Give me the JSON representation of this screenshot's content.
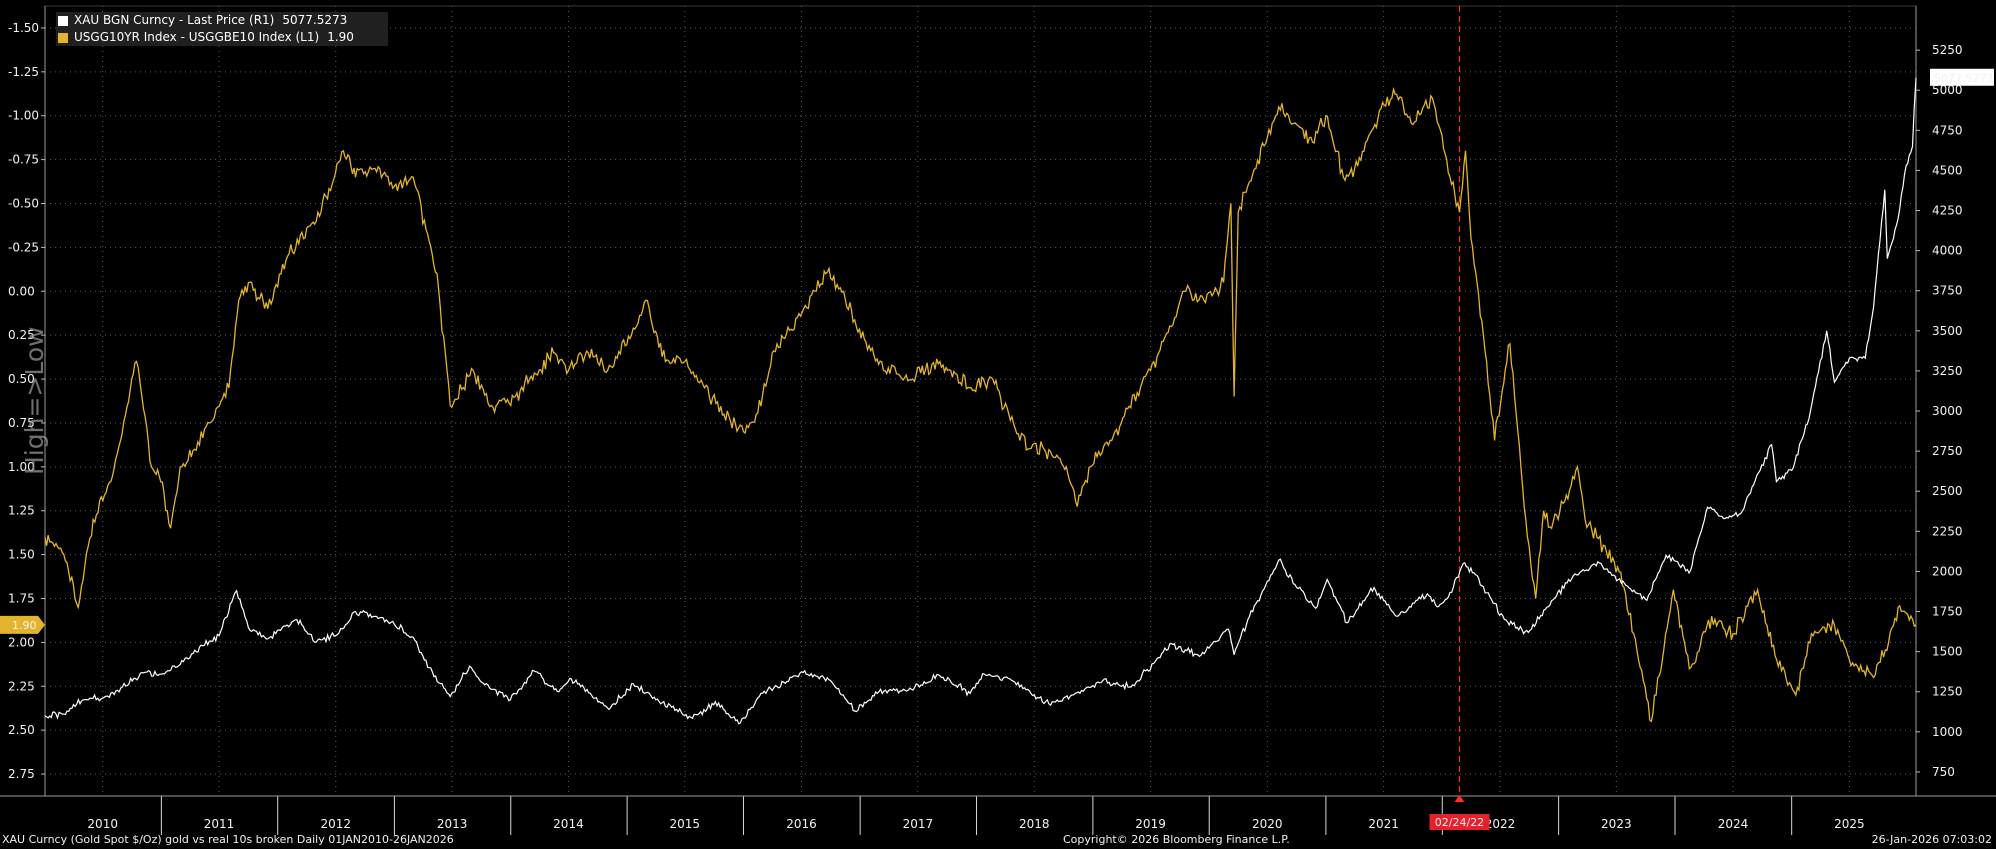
{
  "legend": {
    "gold_label": "XAU BGN Curncy - Last Price (R1)",
    "gold_value": "5077.5273",
    "spread_label": "USGG10YR Index - USGGBE10 Index (L1)",
    "spread_value": "1.90"
  },
  "colors": {
    "gold_series": "#ffffff",
    "spread_series": "#e3b42d",
    "event_marker": "#ff2b2b",
    "background": "#000000"
  },
  "watermark": "High=>Low",
  "footer": {
    "left": "XAU Curncy (Gold Spot  $/Oz) gold vs real 10s broken Daily 01JAN2010-26JAN2026",
    "center": "Copyright© 2026 Bloomberg Finance L.P.",
    "right": "26-Jan-2026 07:03:02"
  },
  "chart_data": {
    "type": "line",
    "x_label": "",
    "x_range": [
      "2010-01-01",
      "2026-01-26"
    ],
    "x_ticks": [
      "2010",
      "2011",
      "2012",
      "2013",
      "2014",
      "2015",
      "2016",
      "2017",
      "2018",
      "2019",
      "2020",
      "2021",
      "2022",
      "2023",
      "2024",
      "2025"
    ],
    "left_axis": {
      "label": "",
      "inverted": true,
      "range": [
        2.875,
        -1.625
      ],
      "ticks": [
        "-1.50",
        "-1.25",
        "-1.00",
        "-0.75",
        "-0.50",
        "-0.25",
        "0.00",
        "0.25",
        "0.50",
        "0.75",
        "1.00",
        "1.25",
        "1.50",
        "1.75",
        "2.00",
        "2.25",
        "2.50",
        "2.75"
      ]
    },
    "right_axis": {
      "label": "",
      "range": [
        600,
        5525
      ],
      "ticks": [
        "750",
        "1000",
        "1250",
        "1500",
        "1750",
        "2000",
        "2250",
        "2500",
        "2750",
        "3000",
        "3250",
        "3500",
        "3750",
        "4000",
        "4250",
        "4500",
        "4750",
        "5000",
        "5250"
      ]
    },
    "annotation": {
      "date": "2022-02-24",
      "label": "02/24/22"
    },
    "last_values": {
      "gold": "5077.5273",
      "spread": "1.90"
    },
    "series": [
      {
        "name": "XAU BGN Curncy - Last Price (R1)",
        "axis": "right",
        "points": [
          [
            "2010-01-01",
            1100
          ],
          [
            "2010-03-01",
            1110
          ],
          [
            "2010-05-01",
            1200
          ],
          [
            "2010-07-01",
            1210
          ],
          [
            "2010-09-01",
            1280
          ],
          [
            "2010-11-01",
            1370
          ],
          [
            "2011-01-01",
            1360
          ],
          [
            "2011-03-01",
            1420
          ],
          [
            "2011-05-01",
            1530
          ],
          [
            "2011-07-01",
            1600
          ],
          [
            "2011-08-25",
            1880
          ],
          [
            "2011-10-01",
            1650
          ],
          [
            "2011-12-01",
            1580
          ],
          [
            "2012-01-15",
            1650
          ],
          [
            "2012-03-01",
            1700
          ],
          [
            "2012-05-01",
            1560
          ],
          [
            "2012-07-01",
            1600
          ],
          [
            "2012-09-01",
            1750
          ],
          [
            "2012-11-01",
            1720
          ],
          [
            "2013-01-01",
            1670
          ],
          [
            "2013-03-01",
            1590
          ],
          [
            "2013-04-20",
            1400
          ],
          [
            "2013-06-25",
            1220
          ],
          [
            "2013-08-25",
            1410
          ],
          [
            "2013-10-01",
            1310
          ],
          [
            "2013-12-31",
            1200
          ],
          [
            "2014-03-15",
            1380
          ],
          [
            "2014-06-01",
            1250
          ],
          [
            "2014-07-10",
            1330
          ],
          [
            "2014-11-05",
            1140
          ],
          [
            "2015-01-20",
            1300
          ],
          [
            "2015-04-01",
            1200
          ],
          [
            "2015-07-20",
            1090
          ],
          [
            "2015-10-15",
            1180
          ],
          [
            "2015-12-17",
            1050
          ],
          [
            "2016-03-01",
            1240
          ],
          [
            "2016-07-06",
            1370
          ],
          [
            "2016-09-30",
            1320
          ],
          [
            "2016-12-15",
            1130
          ],
          [
            "2017-03-01",
            1250
          ],
          [
            "2017-06-01",
            1260
          ],
          [
            "2017-09-08",
            1350
          ],
          [
            "2017-12-12",
            1240
          ],
          [
            "2018-01-25",
            1360
          ],
          [
            "2018-05-01",
            1310
          ],
          [
            "2018-08-16",
            1175
          ],
          [
            "2018-11-01",
            1230
          ],
          [
            "2019-02-01",
            1320
          ],
          [
            "2019-05-01",
            1280
          ],
          [
            "2019-09-04",
            1550
          ],
          [
            "2019-12-01",
            1470
          ],
          [
            "2020-03-01",
            1640
          ],
          [
            "2020-03-19",
            1480
          ],
          [
            "2020-05-01",
            1700
          ],
          [
            "2020-08-06",
            2070
          ],
          [
            "2020-10-01",
            1900
          ],
          [
            "2020-11-30",
            1770
          ],
          [
            "2021-01-05",
            1950
          ],
          [
            "2021-03-08",
            1680
          ],
          [
            "2021-06-01",
            1900
          ],
          [
            "2021-08-10",
            1720
          ],
          [
            "2021-11-15",
            1860
          ],
          [
            "2021-12-15",
            1780
          ],
          [
            "2022-01-20",
            1840
          ],
          [
            "2022-03-08",
            2050
          ],
          [
            "2022-04-15",
            1980
          ],
          [
            "2022-07-15",
            1700
          ],
          [
            "2022-09-28",
            1620
          ],
          [
            "2022-11-30",
            1780
          ],
          [
            "2023-02-01",
            1950
          ],
          [
            "2023-05-04",
            2060
          ],
          [
            "2023-08-15",
            1890
          ],
          [
            "2023-10-05",
            1820
          ],
          [
            "2023-12-04",
            2100
          ],
          [
            "2024-02-14",
            1990
          ],
          [
            "2024-04-12",
            2400
          ],
          [
            "2024-06-01",
            2330
          ],
          [
            "2024-07-25",
            2360
          ],
          [
            "2024-10-30",
            2790
          ],
          [
            "2024-11-14",
            2560
          ],
          [
            "2025-01-01",
            2630
          ],
          [
            "2025-02-24",
            2950
          ],
          [
            "2025-04-21",
            3500
          ],
          [
            "2025-05-15",
            3180
          ],
          [
            "2025-07-01",
            3330
          ],
          [
            "2025-08-20",
            3330
          ],
          [
            "2025-09-15",
            3650
          ],
          [
            "2025-10-20",
            4380
          ],
          [
            "2025-10-28",
            3950
          ],
          [
            "2025-12-01",
            4200
          ],
          [
            "2025-12-26",
            4530
          ],
          [
            "2026-01-15",
            4650
          ],
          [
            "2026-01-26",
            5077.5273
          ]
        ]
      },
      {
        "name": "USGG10YR Index - USGGBE10 Index (L1)",
        "axis": "left",
        "points": [
          [
            "2010-01-01",
            1.4
          ],
          [
            "2010-03-01",
            1.5
          ],
          [
            "2010-04-15",
            1.8
          ],
          [
            "2010-06-01",
            1.3
          ],
          [
            "2010-08-01",
            1.05
          ],
          [
            "2010-10-15",
            0.4
          ],
          [
            "2010-11-01",
            0.6
          ],
          [
            "2010-12-01",
            1.0
          ],
          [
            "2010-12-25",
            1.05
          ],
          [
            "2011-01-30",
            1.35
          ],
          [
            "2011-03-01",
            1.0
          ],
          [
            "2011-04-15",
            0.9
          ],
          [
            "2011-06-01",
            0.75
          ],
          [
            "2011-08-01",
            0.55
          ],
          [
            "2011-09-01",
            0.05
          ],
          [
            "2011-10-01",
            -0.05
          ],
          [
            "2011-12-01",
            0.1
          ],
          [
            "2012-02-01",
            -0.2
          ],
          [
            "2012-05-01",
            -0.4
          ],
          [
            "2012-07-25",
            -0.8
          ],
          [
            "2012-09-01",
            -0.65
          ],
          [
            "2012-11-01",
            -0.7
          ],
          [
            "2013-01-01",
            -0.6
          ],
          [
            "2013-03-01",
            -0.65
          ],
          [
            "2013-05-15",
            -0.1
          ],
          [
            "2013-06-25",
            0.65
          ],
          [
            "2013-09-05",
            0.45
          ],
          [
            "2013-11-01",
            0.65
          ],
          [
            "2014-01-01",
            0.65
          ],
          [
            "2014-03-01",
            0.5
          ],
          [
            "2014-05-15",
            0.35
          ],
          [
            "2014-07-01",
            0.45
          ],
          [
            "2014-09-01",
            0.35
          ],
          [
            "2014-11-01",
            0.45
          ],
          [
            "2015-01-30",
            0.2
          ],
          [
            "2015-03-01",
            0.05
          ],
          [
            "2015-05-01",
            0.4
          ],
          [
            "2015-07-01",
            0.4
          ],
          [
            "2015-09-01",
            0.55
          ],
          [
            "2015-11-01",
            0.7
          ],
          [
            "2016-01-01",
            0.8
          ],
          [
            "2016-02-10",
            0.7
          ],
          [
            "2016-04-15",
            0.3
          ],
          [
            "2016-07-08",
            0.1
          ],
          [
            "2016-09-15",
            -0.1
          ],
          [
            "2016-11-10",
            0.0
          ],
          [
            "2016-12-20",
            0.2
          ],
          [
            "2017-03-15",
            0.45
          ],
          [
            "2017-06-15",
            0.5
          ],
          [
            "2017-09-08",
            0.4
          ],
          [
            "2017-12-15",
            0.55
          ],
          [
            "2018-02-21",
            0.5
          ],
          [
            "2018-05-17",
            0.85
          ],
          [
            "2018-08-01",
            0.9
          ],
          [
            "2018-10-10",
            1.0
          ],
          [
            "2018-11-08",
            1.2
          ],
          [
            "2018-12-25",
            1.0
          ],
          [
            "2019-03-01",
            0.85
          ],
          [
            "2019-05-30",
            0.55
          ],
          [
            "2019-07-01",
            0.45
          ],
          [
            "2019-09-04",
            0.2
          ],
          [
            "2019-10-15",
            0.0
          ],
          [
            "2019-12-15",
            0.05
          ],
          [
            "2020-02-15",
            -0.05
          ],
          [
            "2020-03-09",
            -0.5
          ],
          [
            "2020-03-19",
            0.6
          ],
          [
            "2020-04-01",
            -0.45
          ],
          [
            "2020-05-01",
            -0.6
          ],
          [
            "2020-08-06",
            -1.05
          ],
          [
            "2020-10-01",
            -0.95
          ],
          [
            "2020-11-20",
            -0.85
          ],
          [
            "2021-01-01",
            -1.0
          ],
          [
            "2021-02-25",
            -0.65
          ],
          [
            "2021-04-01",
            -0.7
          ],
          [
            "2021-05-20",
            -0.9
          ],
          [
            "2021-08-01",
            -1.15
          ],
          [
            "2021-10-01",
            -0.95
          ],
          [
            "2021-12-01",
            -1.1
          ],
          [
            "2022-01-15",
            -0.75
          ],
          [
            "2022-02-24",
            -0.45
          ],
          [
            "2022-03-15",
            -0.8
          ],
          [
            "2022-04-01",
            -0.3
          ],
          [
            "2022-05-10",
            0.25
          ],
          [
            "2022-06-14",
            0.85
          ],
          [
            "2022-08-01",
            0.3
          ],
          [
            "2022-09-20",
            1.3
          ],
          [
            "2022-10-21",
            1.75
          ],
          [
            "2022-11-15",
            1.25
          ],
          [
            "2022-12-10",
            1.35
          ],
          [
            "2023-01-20",
            1.2
          ],
          [
            "2023-03-01",
            1.0
          ],
          [
            "2023-03-25",
            1.3
          ],
          [
            "2023-05-01",
            1.4
          ],
          [
            "2023-07-15",
            1.6
          ],
          [
            "2023-10-19",
            2.45
          ],
          [
            "2023-12-27",
            1.7
          ],
          [
            "2024-02-15",
            2.15
          ],
          [
            "2024-04-25",
            1.85
          ],
          [
            "2024-07-01",
            1.95
          ],
          [
            "2024-09-16",
            1.7
          ],
          [
            "2024-11-15",
            2.1
          ],
          [
            "2025-01-14",
            2.3
          ],
          [
            "2025-03-04",
            1.95
          ],
          [
            "2025-05-15",
            1.9
          ],
          [
            "2025-07-01",
            2.1
          ],
          [
            "2025-09-15",
            2.2
          ],
          [
            "2025-11-01",
            2.0
          ],
          [
            "2025-12-01",
            1.8
          ],
          [
            "2026-01-10",
            1.85
          ],
          [
            "2026-01-26",
            1.9
          ]
        ]
      }
    ]
  }
}
